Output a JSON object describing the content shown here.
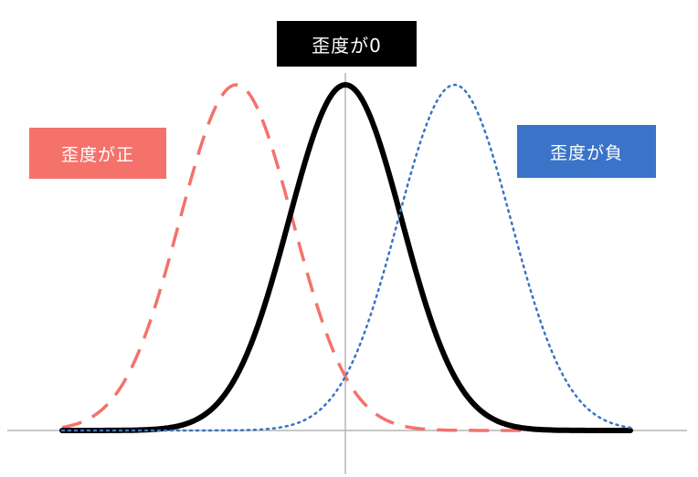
{
  "labels": {
    "zero_skew": "歪度が0",
    "positive_skew": "歪度が正",
    "negative_skew": "歪度が負"
  },
  "colors": {
    "zero_skew": "#000000",
    "positive_skew": "#f4726a",
    "negative_skew": "#3a73c7",
    "axis": "#b5b5b5"
  },
  "curves": [
    {
      "key": "positive_skew",
      "style": "dashed",
      "peak_offset": -0.33
    },
    {
      "key": "zero_skew",
      "style": "solid",
      "peak_offset": 0
    },
    {
      "key": "negative_skew",
      "style": "dotted",
      "peak_offset": 0.33
    }
  ]
}
